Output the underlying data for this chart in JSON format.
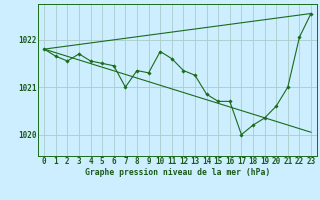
{
  "title": "Graphe pression niveau de la mer (hPa)",
  "bg_color": "#cceeff",
  "grid_color": "#aacccc",
  "line_color": "#1a6b1a",
  "xlim": [
    -0.5,
    23.5
  ],
  "ylim": [
    1019.55,
    1022.75
  ],
  "yticks": [
    1020,
    1021,
    1022
  ],
  "xticks": [
    0,
    1,
    2,
    3,
    4,
    5,
    6,
    7,
    8,
    9,
    10,
    11,
    12,
    13,
    14,
    15,
    16,
    17,
    18,
    19,
    20,
    21,
    22,
    23
  ],
  "series_main": {
    "x": [
      0,
      1,
      2,
      3,
      4,
      5,
      6,
      7,
      8,
      9,
      10,
      11,
      12,
      13,
      14,
      15,
      16,
      17,
      18,
      19,
      20,
      21,
      22,
      23
    ],
    "y": [
      1021.8,
      1021.65,
      1021.55,
      1021.7,
      1021.55,
      1021.5,
      1021.45,
      1021.0,
      1021.35,
      1021.3,
      1021.75,
      1021.6,
      1021.35,
      1021.25,
      1020.85,
      1020.7,
      1020.7,
      1020.0,
      1020.2,
      1020.35,
      1020.6,
      1021.0,
      1022.05,
      1022.55
    ]
  },
  "series_up": {
    "x": [
      0,
      23
    ],
    "y": [
      1021.8,
      1022.55
    ]
  },
  "series_down": {
    "x": [
      0,
      23
    ],
    "y": [
      1021.8,
      1020.05
    ]
  },
  "xlabel_fontsize": 5.5,
  "ylabel_fontsize": 5.5,
  "title_fontsize": 5.8
}
